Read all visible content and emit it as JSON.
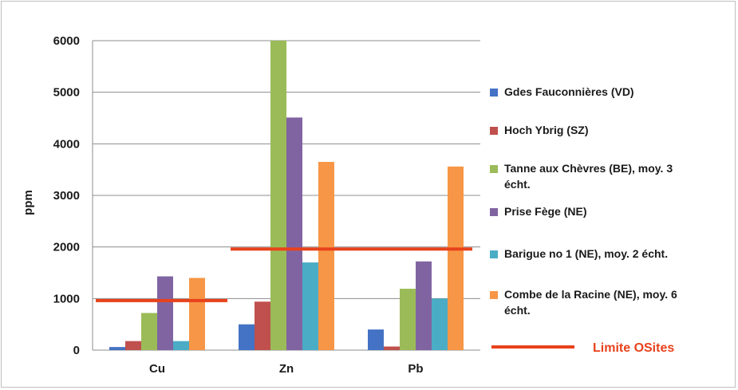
{
  "chart_data": {
    "type": "bar",
    "title": "",
    "xlabel": "",
    "ylabel": "ppm",
    "ylim": [
      0,
      6000
    ],
    "yticks": [
      "0",
      "1000",
      "2000",
      "3000",
      "4000",
      "5000",
      "6000"
    ],
    "grid": true,
    "legend_position": "right",
    "categories": [
      "Cu",
      "Zn",
      "Pb"
    ],
    "series": [
      {
        "name": "Gdes Fauconnières (VD)",
        "color": "#4472c4",
        "values": [
          60,
          500,
          400
        ]
      },
      {
        "name": "Hoch Ybrig (SZ)",
        "color": "#c0504d",
        "values": [
          175,
          940,
          70
        ]
      },
      {
        "name": "Tanne aux Chèvres (BE), moy. 3 écht.",
        "color": "#9bbb59",
        "values": [
          720,
          6000,
          1190
        ]
      },
      {
        "name": "Prise Fège (NE)",
        "color": "#8064a2",
        "values": [
          1430,
          4510,
          1720
        ]
      },
      {
        "name": "Barigue no 1 (NE), moy. 2 écht.",
        "color": "#4bacc6",
        "values": [
          175,
          1700,
          1000
        ]
      },
      {
        "name": "Combe de la Racine (NE), moy. 6 écht.",
        "color": "#f79646",
        "values": [
          1400,
          3650,
          3560
        ]
      }
    ],
    "threshold": {
      "name": "Limite OSites",
      "color": "#e8421c",
      "values": [
        960,
        1960,
        1960
      ]
    }
  }
}
